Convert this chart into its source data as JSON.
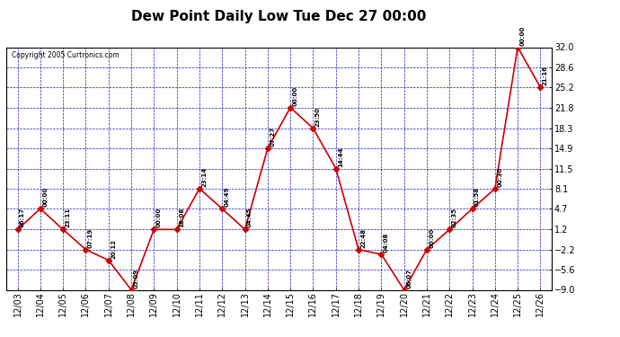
{
  "title": "Dew Point Daily Low Tue Dec 27 00:00",
  "copyright": "Copyright 2005 Curtronics.com",
  "ylim": [
    -9.0,
    32.0
  ],
  "yticks": [
    32.0,
    28.6,
    25.2,
    21.8,
    18.3,
    14.9,
    11.5,
    8.1,
    4.7,
    1.2,
    -2.2,
    -5.6,
    -9.0
  ],
  "dates": [
    "12/03",
    "12/04",
    "12/05",
    "12/06",
    "12/07",
    "12/08",
    "12/09",
    "12/10",
    "12/11",
    "12/12",
    "12/13",
    "12/14",
    "12/15",
    "12/16",
    "12/17",
    "12/18",
    "12/19",
    "12/20",
    "12/21",
    "12/22",
    "12/23",
    "12/24",
    "12/25",
    "12/26"
  ],
  "values": [
    1.2,
    4.7,
    1.2,
    -2.2,
    -4.0,
    -9.0,
    1.2,
    1.2,
    8.1,
    4.7,
    1.2,
    14.9,
    21.8,
    18.3,
    11.5,
    -2.2,
    -3.0,
    -9.0,
    -2.2,
    1.2,
    4.7,
    8.1,
    32.0,
    25.2
  ],
  "time_labels": [
    "06:17",
    "00:00",
    "23:11",
    "07:19",
    "20:12",
    "05:09",
    "00:00",
    "18:08",
    "23:14",
    "04:49",
    "04:45",
    "07:27",
    "00:00",
    "23:50",
    "14:44",
    "22:48",
    "04:08",
    "06:07",
    "00:00",
    "02:35",
    "01:58",
    "00:30",
    "00:00",
    "21:16"
  ],
  "line_color": "#cc0000",
  "marker_color": "#cc0000",
  "bg_color": "#ffffff",
  "grid_color": "#0000bb",
  "title_fontsize": 11,
  "tick_fontsize": 7,
  "label_fontsize": 5.5
}
